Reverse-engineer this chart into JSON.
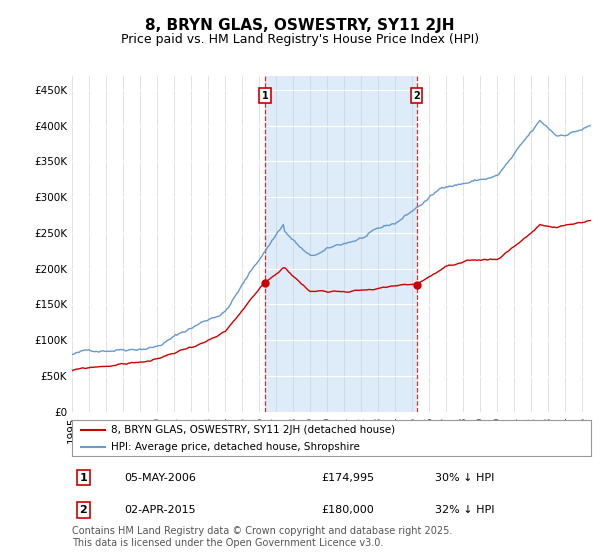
{
  "title": "8, BRYN GLAS, OSWESTRY, SY11 2JH",
  "subtitle": "Price paid vs. HM Land Registry's House Price Index (HPI)",
  "title_fontsize": 11,
  "subtitle_fontsize": 9,
  "legend_line1": "8, BRYN GLAS, OSWESTRY, SY11 2JH (detached house)",
  "legend_line2": "HPI: Average price, detached house, Shropshire",
  "property_color": "#cc0000",
  "hpi_color": "#6699cc",
  "shade_color": "#d0e4f7",
  "annotation1_label": "1",
  "annotation1_date": "05-MAY-2006",
  "annotation1_price": "£174,995",
  "annotation1_hpi": "30% ↓ HPI",
  "annotation1_year": 2006.35,
  "annotation1_value": 174995,
  "annotation2_label": "2",
  "annotation2_date": "02-APR-2015",
  "annotation2_price": "£180,000",
  "annotation2_hpi": "32% ↓ HPI",
  "annotation2_year": 2015.25,
  "annotation2_value": 180000,
  "ylim": [
    0,
    470000
  ],
  "xlim_start": 1995,
  "xlim_end": 2025.5,
  "background_color": "#ffffff",
  "plot_background": "#ffffff",
  "footer": "Contains HM Land Registry data © Crown copyright and database right 2025.\nThis data is licensed under the Open Government Licence v3.0.",
  "footer_fontsize": 7
}
